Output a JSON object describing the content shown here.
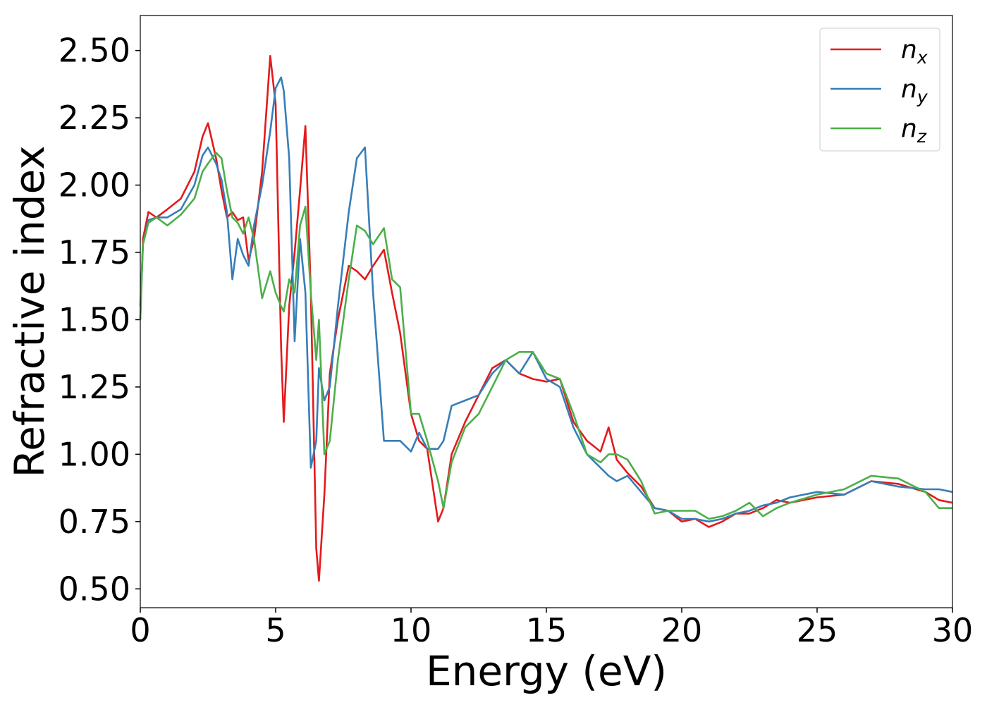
{
  "chart_data": {
    "type": "line",
    "xlabel": "Energy (eV)",
    "ylabel": "Refractive index",
    "x": [
      0,
      0.1,
      0.3,
      0.6,
      1,
      1.5,
      2,
      2.3,
      2.5,
      2.8,
      3,
      3.2,
      3.4,
      3.6,
      3.8,
      4,
      4.2,
      4.5,
      4.8,
      5,
      5.2,
      5.3,
      5.5,
      5.7,
      5.9,
      6.1,
      6.3,
      6.5,
      6.6,
      6.8,
      7,
      7.3,
      7.7,
      8,
      8.3,
      8.6,
      9,
      9.3,
      9.6,
      10,
      10.3,
      10.6,
      11,
      11.2,
      11.5,
      12,
      12.5,
      13,
      13.5,
      14,
      14.5,
      15,
      15.5,
      16,
      16.5,
      17,
      17.3,
      17.6,
      18,
      18.5,
      19,
      19.5,
      20,
      20.5,
      21,
      21.5,
      22,
      22.5,
      23,
      23.5,
      24,
      25,
      26,
      27,
      28,
      29,
      29.5,
      30
    ],
    "series": [
      {
        "name": "nx",
        "color": "#e41a1c",
        "values": [
          1.5,
          1.8,
          1.9,
          1.88,
          1.91,
          1.95,
          2.05,
          2.18,
          2.23,
          2.1,
          1.98,
          1.88,
          1.9,
          1.87,
          1.88,
          1.72,
          1.8,
          2.05,
          2.48,
          2.3,
          1.4,
          1.12,
          1.55,
          1.75,
          1.98,
          2.22,
          1.6,
          0.65,
          0.53,
          0.85,
          1.3,
          1.5,
          1.7,
          1.68,
          1.65,
          1.7,
          1.76,
          1.6,
          1.45,
          1.15,
          1.05,
          1.02,
          0.75,
          0.8,
          1.0,
          1.12,
          1.22,
          1.32,
          1.35,
          1.3,
          1.28,
          1.27,
          1.28,
          1.12,
          1.05,
          1.01,
          1.1,
          0.98,
          0.93,
          0.88,
          0.8,
          0.79,
          0.75,
          0.76,
          0.73,
          0.75,
          0.78,
          0.78,
          0.8,
          0.83,
          0.82,
          0.84,
          0.85,
          0.9,
          0.89,
          0.86,
          0.83,
          0.82
        ]
      },
      {
        "name": "ny",
        "color": "#377eb8",
        "values": [
          1.55,
          1.78,
          1.87,
          1.88,
          1.88,
          1.91,
          2.0,
          2.11,
          2.14,
          2.08,
          2.02,
          1.9,
          1.65,
          1.8,
          1.74,
          1.7,
          1.85,
          2.0,
          2.2,
          2.36,
          2.4,
          2.35,
          2.1,
          1.42,
          1.8,
          1.6,
          0.95,
          1.05,
          1.32,
          1.2,
          1.25,
          1.55,
          1.9,
          2.1,
          2.14,
          1.6,
          1.05,
          1.05,
          1.05,
          1.01,
          1.08,
          1.02,
          1.02,
          1.05,
          1.18,
          1.2,
          1.22,
          1.3,
          1.35,
          1.3,
          1.38,
          1.28,
          1.25,
          1.1,
          1.0,
          0.95,
          0.92,
          0.9,
          0.92,
          0.86,
          0.8,
          0.79,
          0.76,
          0.76,
          0.75,
          0.76,
          0.78,
          0.79,
          0.81,
          0.82,
          0.84,
          0.86,
          0.85,
          0.9,
          0.88,
          0.87,
          0.87,
          0.86
        ]
      },
      {
        "name": "nz",
        "color": "#4daf4a",
        "values": [
          1.5,
          1.78,
          1.86,
          1.88,
          1.85,
          1.89,
          1.95,
          2.05,
          2.08,
          2.12,
          2.1,
          1.98,
          1.88,
          1.86,
          1.82,
          1.88,
          1.8,
          1.58,
          1.68,
          1.6,
          1.55,
          1.53,
          1.65,
          1.6,
          1.85,
          1.92,
          1.6,
          1.35,
          1.5,
          1.0,
          1.05,
          1.35,
          1.65,
          1.85,
          1.83,
          1.78,
          1.84,
          1.65,
          1.62,
          1.15,
          1.15,
          1.05,
          0.9,
          0.8,
          0.97,
          1.1,
          1.15,
          1.25,
          1.35,
          1.38,
          1.38,
          1.3,
          1.28,
          1.15,
          1.0,
          0.97,
          1.0,
          1.0,
          0.98,
          0.9,
          0.78,
          0.79,
          0.79,
          0.79,
          0.76,
          0.77,
          0.79,
          0.82,
          0.77,
          0.8,
          0.82,
          0.85,
          0.87,
          0.92,
          0.91,
          0.86,
          0.8,
          0.8
        ]
      }
    ],
    "xlim": [
      0,
      30
    ],
    "ylim": [
      0.43,
      2.63
    ],
    "xticks": [
      0,
      5,
      10,
      15,
      20,
      25,
      30
    ],
    "yticks": [
      {
        "value": 0.5,
        "label": "0.50"
      },
      {
        "value": 0.75,
        "label": "0.75"
      },
      {
        "value": 1.0,
        "label": "1.00"
      },
      {
        "value": 1.25,
        "label": "1.25"
      },
      {
        "value": 1.5,
        "label": "1.50"
      },
      {
        "value": 1.75,
        "label": "1.75"
      },
      {
        "value": 2.0,
        "label": "2.00"
      },
      {
        "value": 2.25,
        "label": "2.25"
      },
      {
        "value": 2.5,
        "label": "2.50"
      }
    ],
    "legend": "upper right",
    "grid": false
  }
}
